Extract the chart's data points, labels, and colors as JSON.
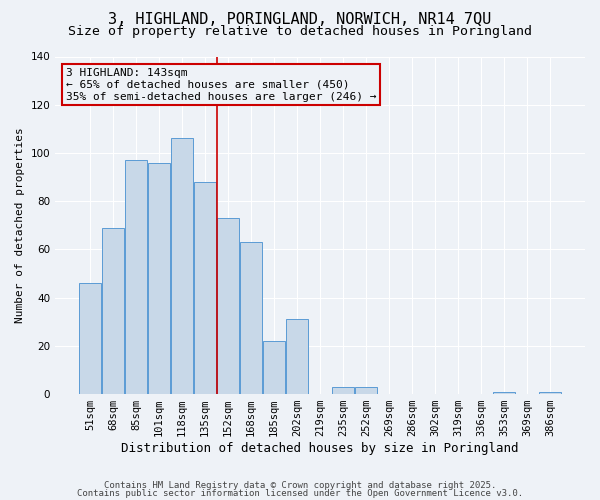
{
  "title": "3, HIGHLAND, PORINGLAND, NORWICH, NR14 7QU",
  "subtitle": "Size of property relative to detached houses in Poringland",
  "xlabel": "Distribution of detached houses by size in Poringland",
  "ylabel": "Number of detached properties",
  "categories": [
    "51sqm",
    "68sqm",
    "85sqm",
    "101sqm",
    "118sqm",
    "135sqm",
    "152sqm",
    "168sqm",
    "185sqm",
    "202sqm",
    "219sqm",
    "235sqm",
    "252sqm",
    "269sqm",
    "286sqm",
    "302sqm",
    "319sqm",
    "336sqm",
    "353sqm",
    "369sqm",
    "386sqm"
  ],
  "values": [
    46,
    69,
    97,
    96,
    106,
    88,
    73,
    63,
    22,
    31,
    0,
    3,
    3,
    0,
    0,
    0,
    0,
    0,
    1,
    0,
    1
  ],
  "bar_color": "#c8d8e8",
  "bar_edge_color": "#5b9bd5",
  "vline_color": "#cc0000",
  "annotation_title": "3 HIGHLAND: 143sqm",
  "annotation_line1": "← 65% of detached houses are smaller (450)",
  "annotation_line2": "35% of semi-detached houses are larger (246) →",
  "annotation_box_edgecolor": "#cc0000",
  "ylim": [
    0,
    140
  ],
  "yticks": [
    0,
    20,
    40,
    60,
    80,
    100,
    120,
    140
  ],
  "footer1": "Contains HM Land Registry data © Crown copyright and database right 2025.",
  "footer2": "Contains public sector information licensed under the Open Government Licence v3.0.",
  "background_color": "#eef2f7",
  "title_fontsize": 11,
  "subtitle_fontsize": 9.5,
  "xlabel_fontsize": 9,
  "ylabel_fontsize": 8,
  "tick_fontsize": 7.5,
  "annotation_fontsize": 8,
  "footer_fontsize": 6.5
}
